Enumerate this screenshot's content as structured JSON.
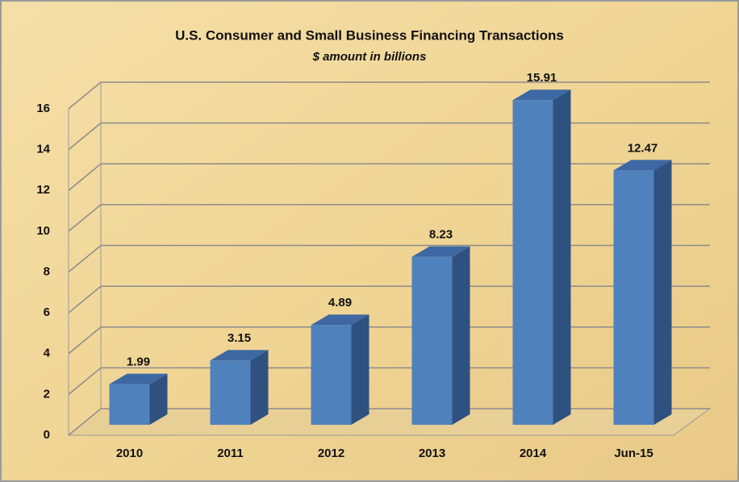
{
  "chart_data": {
    "type": "bar3d",
    "title": "U.S. Consumer and Small Business Financing Transactions",
    "subtitle": "$ amount in billions",
    "categories": [
      "2010",
      "2011",
      "2012",
      "2013",
      "2014",
      "Jun-15"
    ],
    "values": [
      1.99,
      3.15,
      4.89,
      8.23,
      15.91,
      12.47
    ],
    "color": "#4f81bd",
    "ylim": [
      0,
      16
    ],
    "yticks": [
      0,
      2,
      4,
      6,
      8,
      10,
      12,
      14,
      16
    ],
    "grid": true
  }
}
